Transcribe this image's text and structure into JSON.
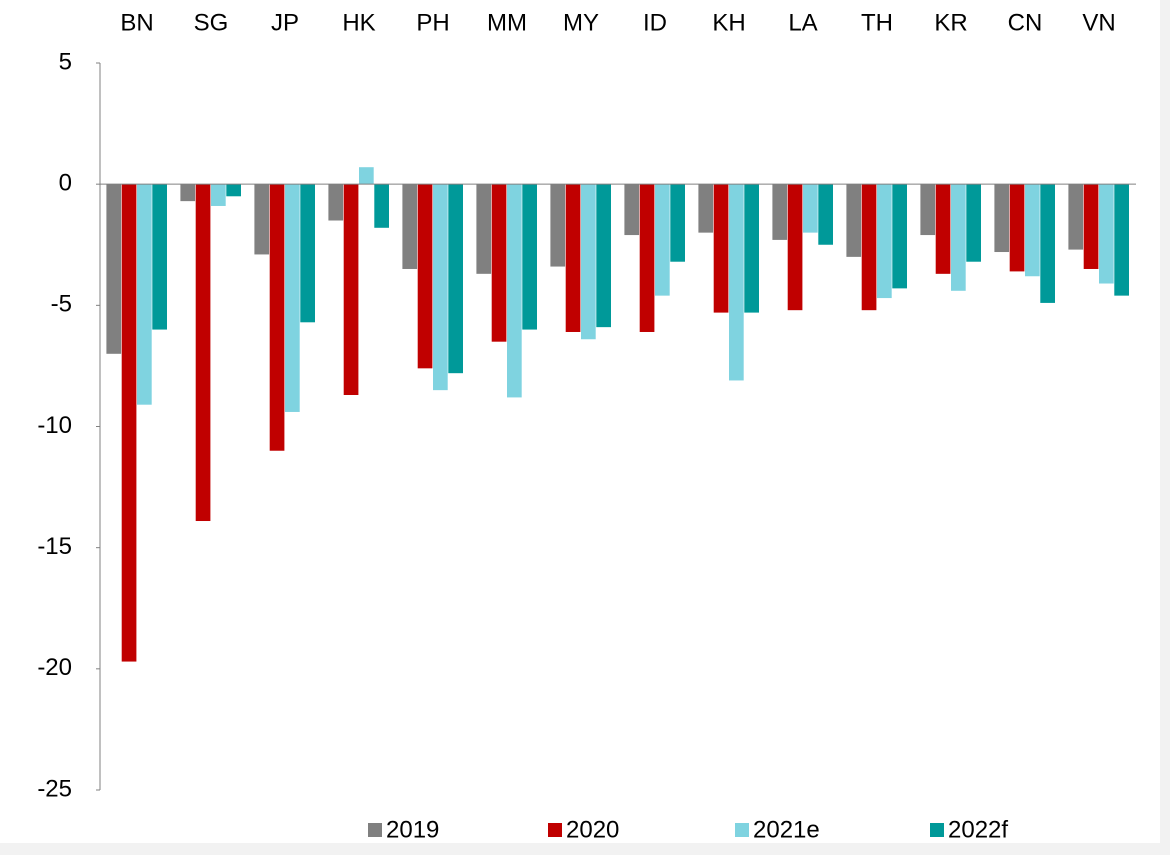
{
  "chart_data": {
    "type": "bar",
    "categories": [
      "BN",
      "SG",
      "JP",
      "HK",
      "PH",
      "MM",
      "MY",
      "ID",
      "KH",
      "LA",
      "TH",
      "KR",
      "CN",
      "VN"
    ],
    "series": [
      {
        "name": "2019",
        "color": "#808080",
        "values": [
          -7.0,
          -0.7,
          -2.9,
          -1.5,
          -3.5,
          -3.7,
          -3.4,
          -2.1,
          -2.0,
          -2.3,
          -3.0,
          -2.1,
          -2.8,
          -2.7
        ]
      },
      {
        "name": "2020",
        "color": "#c00000",
        "values": [
          -19.7,
          -13.9,
          -11.0,
          -8.7,
          -7.6,
          -6.5,
          -6.1,
          -6.1,
          -5.3,
          -5.2,
          -5.2,
          -3.7,
          -3.6,
          -3.5
        ]
      },
      {
        "name": "2021e",
        "color": "#7fd3e0",
        "values": [
          -9.1,
          -0.9,
          -9.4,
          0.7,
          -8.5,
          -8.8,
          -6.4,
          -4.6,
          -8.1,
          -2.0,
          -4.7,
          -4.4,
          -3.8,
          -4.1
        ]
      },
      {
        "name": "2022f",
        "color": "#009999",
        "values": [
          -6.0,
          -0.5,
          -5.7,
          -1.8,
          -7.8,
          -6.0,
          -5.9,
          -3.2,
          -5.3,
          -2.5,
          -4.3,
          -3.2,
          -4.9,
          -4.6
        ]
      }
    ],
    "ylim": [
      -25,
      5
    ],
    "yticks": [
      -25,
      -20,
      -15,
      -10,
      -5,
      0,
      5
    ],
    "grid": false,
    "legend": "bottom"
  }
}
